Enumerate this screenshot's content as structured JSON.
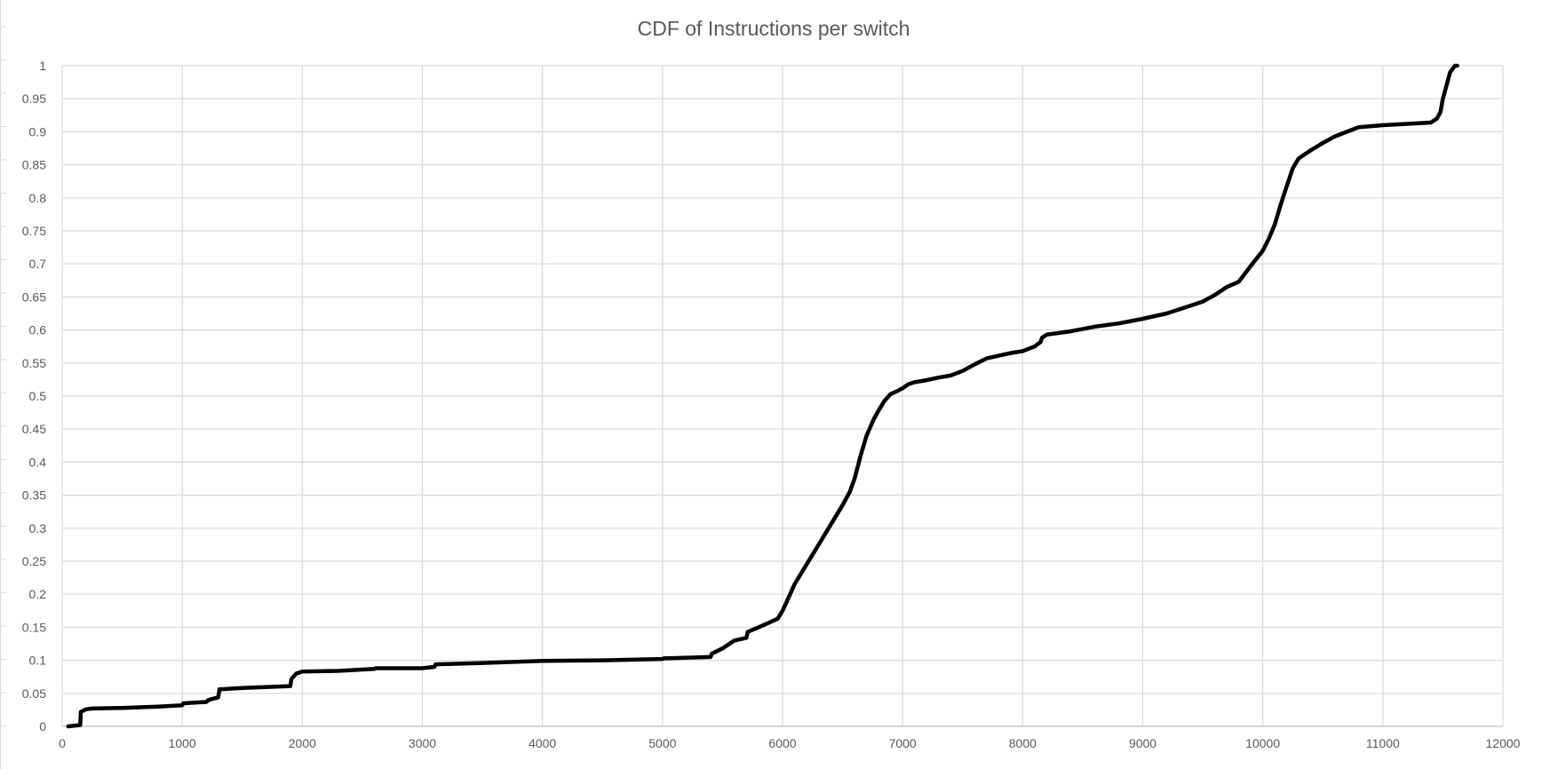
{
  "chart_data": {
    "type": "line",
    "title": "CDF of Instructions per switch",
    "xlabel": "",
    "ylabel": "",
    "xlim": [
      0,
      12000
    ],
    "ylim": [
      0,
      1
    ],
    "x_ticks": [
      0,
      1000,
      2000,
      3000,
      4000,
      5000,
      6000,
      7000,
      8000,
      9000,
      10000,
      11000,
      12000
    ],
    "y_ticks": [
      0,
      0.05,
      0.1,
      0.15,
      0.2,
      0.25,
      0.3,
      0.35,
      0.4,
      0.45,
      0.5,
      0.55,
      0.6,
      0.65,
      0.7,
      0.75,
      0.8,
      0.85,
      0.9,
      0.95,
      1
    ],
    "y_tick_labels": [
      "0",
      "0.05",
      "0.1",
      "0.15",
      "0.2",
      "0.25",
      "0.3",
      "0.35",
      "0.4",
      "0.45",
      "0.5",
      "0.55",
      "0.6",
      "0.65",
      "0.7",
      "0.75",
      "0.8",
      "0.85",
      "0.9",
      "0.95",
      "1"
    ],
    "grid": true,
    "legend": "none",
    "series": [
      {
        "color": "#000000",
        "x": [
          50,
          150,
          155,
          200,
          250,
          500,
          800,
          1000,
          1010,
          1200,
          1220,
          1300,
          1310,
          1500,
          1900,
          1910,
          1950,
          2000,
          2300,
          2600,
          2610,
          3000,
          3100,
          3110,
          3500,
          4000,
          4500,
          5000,
          5010,
          5400,
          5410,
          5500,
          5600,
          5700,
          5710,
          5800,
          5900,
          5960,
          6000,
          6050,
          6100,
          6200,
          6300,
          6400,
          6500,
          6560,
          6600,
          6650,
          6700,
          6760,
          6800,
          6850,
          6900,
          6950,
          7000,
          7050,
          7100,
          7200,
          7300,
          7400,
          7500,
          7600,
          7700,
          7800,
          7900,
          8000,
          8100,
          8150,
          8160,
          8200,
          8400,
          8600,
          8800,
          9000,
          9200,
          9400,
          9500,
          9600,
          9700,
          9800,
          9850,
          9900,
          10000,
          10050,
          10100,
          10150,
          10200,
          10250,
          10300,
          10400,
          10500,
          10600,
          10700,
          10800,
          11000,
          11200,
          11400,
          11450,
          11480,
          11500,
          11530,
          11560,
          11600,
          11620
        ],
        "y": [
          0,
          0.002,
          0.022,
          0.026,
          0.027,
          0.028,
          0.03,
          0.032,
          0.035,
          0.037,
          0.04,
          0.044,
          0.056,
          0.058,
          0.061,
          0.072,
          0.08,
          0.083,
          0.084,
          0.087,
          0.088,
          0.088,
          0.09,
          0.094,
          0.096,
          0.099,
          0.1,
          0.102,
          0.103,
          0.105,
          0.11,
          0.118,
          0.13,
          0.134,
          0.143,
          0.15,
          0.158,
          0.163,
          0.175,
          0.195,
          0.215,
          0.245,
          0.275,
          0.305,
          0.335,
          0.355,
          0.375,
          0.41,
          0.44,
          0.465,
          0.478,
          0.493,
          0.503,
          0.507,
          0.512,
          0.518,
          0.521,
          0.524,
          0.528,
          0.531,
          0.538,
          0.548,
          0.557,
          0.561,
          0.565,
          0.568,
          0.575,
          0.582,
          0.588,
          0.593,
          0.598,
          0.605,
          0.61,
          0.617,
          0.625,
          0.637,
          0.643,
          0.653,
          0.665,
          0.673,
          0.685,
          0.697,
          0.72,
          0.738,
          0.76,
          0.79,
          0.818,
          0.845,
          0.86,
          0.872,
          0.883,
          0.893,
          0.9,
          0.907,
          0.91,
          0.912,
          0.914,
          0.92,
          0.93,
          0.95,
          0.97,
          0.99,
          1.0,
          1.0
        ]
      }
    ]
  }
}
